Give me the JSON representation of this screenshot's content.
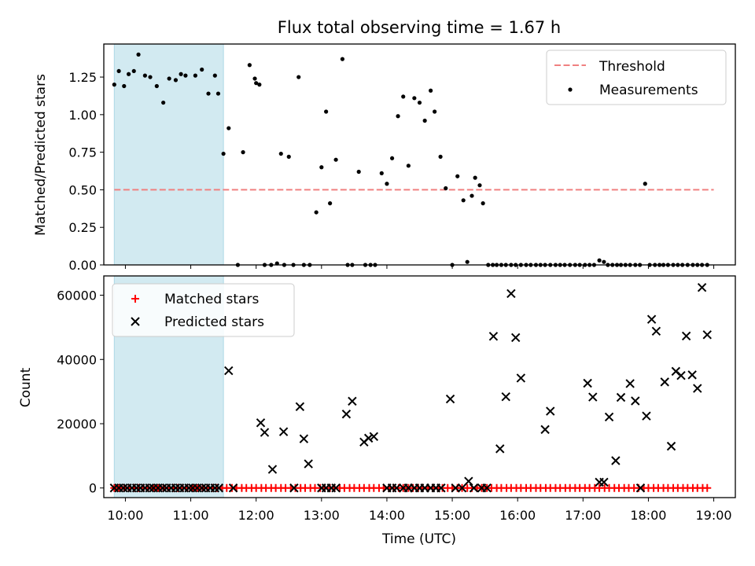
{
  "title": "Flux total observing time = 1.67 h",
  "colors": {
    "shade": "#add8e6",
    "threshold": "#f08080",
    "matched": "#ff0000",
    "predicted": "#000000"
  },
  "chart_data": [
    {
      "type": "scatter",
      "ylabel": "Matched/Predicted stars",
      "xlim": [
        9.67,
        19.33
      ],
      "ylim": [
        0,
        1.47
      ],
      "yticks": [
        0,
        0.25,
        0.5,
        0.75,
        1.0,
        1.25
      ],
      "ytick_labels": [
        "0.00",
        "0.25",
        "0.50",
        "0.75",
        "1.00",
        "1.25"
      ],
      "shaded_region": [
        9.83,
        11.5
      ],
      "threshold": {
        "name": "Threshold",
        "y": 0.5,
        "x_range": [
          9.83,
          19.0
        ]
      },
      "legend_position": "upper right",
      "series": [
        {
          "name": "Measurements",
          "x": [
            9.83,
            9.9,
            9.98,
            10.05,
            10.13,
            10.2,
            10.3,
            10.38,
            10.48,
            10.58,
            10.67,
            10.77,
            10.85,
            10.92,
            11.07,
            11.17,
            11.27,
            11.37,
            11.42,
            11.5,
            11.58,
            11.72,
            11.8,
            11.9,
            11.98,
            12.0,
            12.05,
            12.13,
            12.23,
            12.32,
            12.38,
            12.43,
            12.5,
            12.57,
            12.65,
            12.73,
            12.82,
            12.92,
            13.0,
            13.07,
            13.13,
            13.22,
            13.32,
            13.4,
            13.47,
            13.57,
            13.67,
            13.75,
            13.82,
            13.92,
            14.0,
            14.08,
            14.17,
            14.25,
            14.33,
            14.42,
            14.5,
            14.58,
            14.67,
            14.73,
            14.82,
            14.9,
            15.0,
            15.08,
            15.17,
            15.23,
            15.3,
            15.35,
            15.42,
            15.47,
            15.55,
            15.62,
            15.68,
            15.75,
            15.82,
            15.9,
            15.97,
            16.05,
            16.13,
            16.2,
            16.28,
            16.35,
            16.42,
            16.5,
            16.58,
            16.65,
            16.72,
            16.8,
            16.88,
            16.95,
            17.03,
            17.1,
            17.17,
            17.25,
            17.32,
            17.38,
            17.45,
            17.52,
            17.58,
            17.65,
            17.72,
            17.8,
            17.87,
            17.95,
            18.02,
            18.1,
            18.17,
            18.23,
            18.3,
            18.38,
            18.45,
            18.52,
            18.6,
            18.68,
            18.75,
            18.82,
            18.9
          ],
          "y": [
            1.2,
            1.29,
            1.19,
            1.27,
            1.29,
            1.4,
            1.26,
            1.25,
            1.19,
            1.08,
            1.24,
            1.23,
            1.27,
            1.26,
            1.26,
            1.3,
            1.14,
            1.26,
            1.14,
            0.74,
            0.91,
            0.0,
            0.75,
            1.33,
            1.24,
            1.21,
            1.2,
            0.0,
            0.0,
            0.01,
            0.74,
            0.0,
            0.72,
            0.0,
            1.25,
            0.0,
            0.0,
            0.35,
            0.65,
            1.02,
            0.41,
            0.7,
            1.37,
            0.0,
            0.0,
            0.62,
            0.0,
            0.0,
            0.0,
            0.61,
            0.54,
            0.71,
            0.99,
            1.12,
            0.66,
            1.11,
            1.08,
            0.96,
            1.16,
            1.02,
            0.72,
            0.51,
            0.0,
            0.59,
            0.43,
            0.02,
            0.46,
            0.58,
            0.53,
            0.41,
            0.0,
            0.0,
            0.0,
            0.0,
            0.0,
            0.0,
            0.0,
            0.0,
            0.0,
            0.0,
            0.0,
            0.0,
            0.0,
            0.0,
            0.0,
            0.0,
            0.0,
            0.0,
            0.0,
            0.0,
            0.0,
            0.0,
            0.0,
            0.03,
            0.02,
            0.0,
            0.0,
            0.0,
            0.0,
            0.0,
            0.0,
            0.0,
            0.0,
            0.54,
            0.0,
            0.0,
            0.0,
            0.0,
            0.0,
            0.0,
            0.0,
            0.0,
            0.0,
            0.0,
            0.0,
            0.0,
            0.0
          ]
        }
      ]
    },
    {
      "type": "scatter",
      "xlabel": "Time (UTC)",
      "ylabel": "Count",
      "xlim": [
        9.67,
        19.33
      ],
      "ylim": [
        -3000,
        66000
      ],
      "xticks": [
        10,
        11,
        12,
        13,
        14,
        15,
        16,
        17,
        18,
        19
      ],
      "xtick_labels": [
        "10:00",
        "11:00",
        "12:00",
        "13:00",
        "14:00",
        "15:00",
        "16:00",
        "17:00",
        "18:00",
        "19:00"
      ],
      "yticks": [
        0,
        20000,
        40000,
        60000
      ],
      "ytick_labels": [
        "0",
        "20000",
        "40000",
        "60000"
      ],
      "shaded_region": [
        9.83,
        11.5
      ],
      "legend_position": "upper left",
      "series": [
        {
          "name": "Matched stars",
          "x": [
            9.83,
            9.9,
            9.98,
            10.05,
            10.13,
            10.2,
            10.28,
            10.35,
            10.43,
            10.5,
            10.58,
            10.65,
            10.73,
            10.8,
            10.88,
            10.95,
            11.03,
            11.1,
            11.18,
            11.25,
            11.33,
            11.4,
            11.48,
            11.55,
            11.63,
            11.7,
            11.78,
            11.85,
            11.93,
            12.0,
            12.08,
            12.15,
            12.23,
            12.3,
            12.38,
            12.45,
            12.53,
            12.6,
            12.68,
            12.75,
            12.83,
            12.9,
            12.98,
            13.05,
            13.13,
            13.2,
            13.28,
            13.35,
            13.43,
            13.5,
            13.58,
            13.65,
            13.73,
            13.8,
            13.88,
            13.95,
            14.03,
            14.1,
            14.18,
            14.25,
            14.33,
            14.4,
            14.48,
            14.55,
            14.63,
            14.7,
            14.78,
            14.85,
            14.93,
            15.0,
            15.08,
            15.15,
            15.23,
            15.3,
            15.38,
            15.45,
            15.53,
            15.6,
            15.68,
            15.75,
            15.83,
            15.9,
            15.98,
            16.05,
            16.13,
            16.2,
            16.28,
            16.35,
            16.43,
            16.5,
            16.58,
            16.65,
            16.73,
            16.8,
            16.88,
            16.95,
            17.03,
            17.1,
            17.18,
            17.25,
            17.33,
            17.4,
            17.48,
            17.55,
            17.63,
            17.7,
            17.78,
            17.85,
            17.93,
            18.0,
            18.08,
            18.15,
            18.23,
            18.3,
            18.38,
            18.45,
            18.53,
            18.6,
            18.68,
            18.75,
            18.83,
            18.9
          ],
          "y": [
            0,
            0,
            0,
            0,
            0,
            0,
            0,
            0,
            0,
            0,
            0,
            0,
            0,
            0,
            0,
            0,
            0,
            0,
            0,
            0,
            0,
            0,
            0,
            0,
            0,
            0,
            0,
            0,
            0,
            0,
            0,
            0,
            0,
            0,
            0,
            0,
            0,
            0,
            0,
            0,
            0,
            0,
            0,
            0,
            0,
            0,
            0,
            0,
            0,
            0,
            0,
            0,
            0,
            0,
            0,
            0,
            0,
            0,
            0,
            0,
            0,
            0,
            0,
            0,
            0,
            0,
            0,
            0,
            0,
            0,
            0,
            0,
            0,
            0,
            0,
            0,
            0,
            0,
            0,
            0,
            0,
            0,
            0,
            0,
            0,
            0,
            0,
            0,
            0,
            0,
            0,
            0,
            0,
            0,
            0,
            0,
            0,
            0,
            0,
            0,
            0,
            0,
            0,
            0,
            0,
            0,
            0,
            0,
            0,
            0,
            0,
            0,
            0,
            0,
            0,
            0,
            0,
            0,
            0,
            0,
            0,
            0
          ]
        },
        {
          "name": "Predicted stars",
          "x": [
            9.83,
            9.9,
            9.97,
            10.03,
            10.1,
            10.17,
            10.23,
            10.3,
            10.37,
            10.43,
            10.5,
            10.57,
            10.63,
            10.7,
            10.77,
            10.83,
            10.9,
            10.97,
            11.03,
            11.1,
            11.17,
            11.23,
            11.3,
            11.37,
            11.43,
            11.58,
            11.65,
            12.07,
            12.13,
            12.25,
            12.42,
            12.58,
            12.67,
            12.73,
            12.8,
            13.0,
            13.07,
            13.15,
            13.22,
            13.38,
            13.47,
            13.65,
            13.72,
            13.8,
            14.0,
            14.08,
            14.15,
            14.25,
            14.33,
            14.42,
            14.5,
            14.58,
            14.67,
            14.75,
            14.83,
            14.97,
            15.05,
            15.15,
            15.25,
            15.33,
            15.45,
            15.53,
            15.63,
            15.73,
            15.82,
            15.9,
            15.97,
            16.05,
            16.42,
            16.5,
            17.07,
            17.15,
            17.25,
            17.32,
            17.4,
            17.5,
            17.58,
            17.72,
            17.8,
            17.88,
            17.97,
            18.05,
            18.12,
            18.25,
            18.35,
            18.42,
            18.5,
            18.58,
            18.67,
            18.75,
            18.82,
            18.9
          ],
          "y": [
            0,
            0,
            0,
            0,
            0,
            0,
            0,
            0,
            0,
            0,
            0,
            0,
            0,
            0,
            0,
            0,
            0,
            0,
            0,
            0,
            0,
            0,
            0,
            0,
            0,
            36500,
            0,
            20300,
            17300,
            5800,
            17500,
            0,
            25300,
            15300,
            7500,
            0,
            0,
            0,
            0,
            23000,
            27000,
            14300,
            15500,
            16000,
            0,
            0,
            0,
            0,
            0,
            0,
            0,
            0,
            0,
            0,
            0,
            27700,
            0,
            0,
            2100,
            0,
            0,
            0,
            47200,
            12200,
            28400,
            60500,
            46800,
            34200,
            18200,
            23900,
            32600,
            28300,
            1800,
            1800,
            22100,
            8500,
            28200,
            32500,
            27100,
            0,
            22400,
            52500,
            48800,
            33000,
            13000,
            36300,
            35000,
            47300,
            35200,
            31000,
            62400,
            47700
          ]
        }
      ]
    }
  ]
}
